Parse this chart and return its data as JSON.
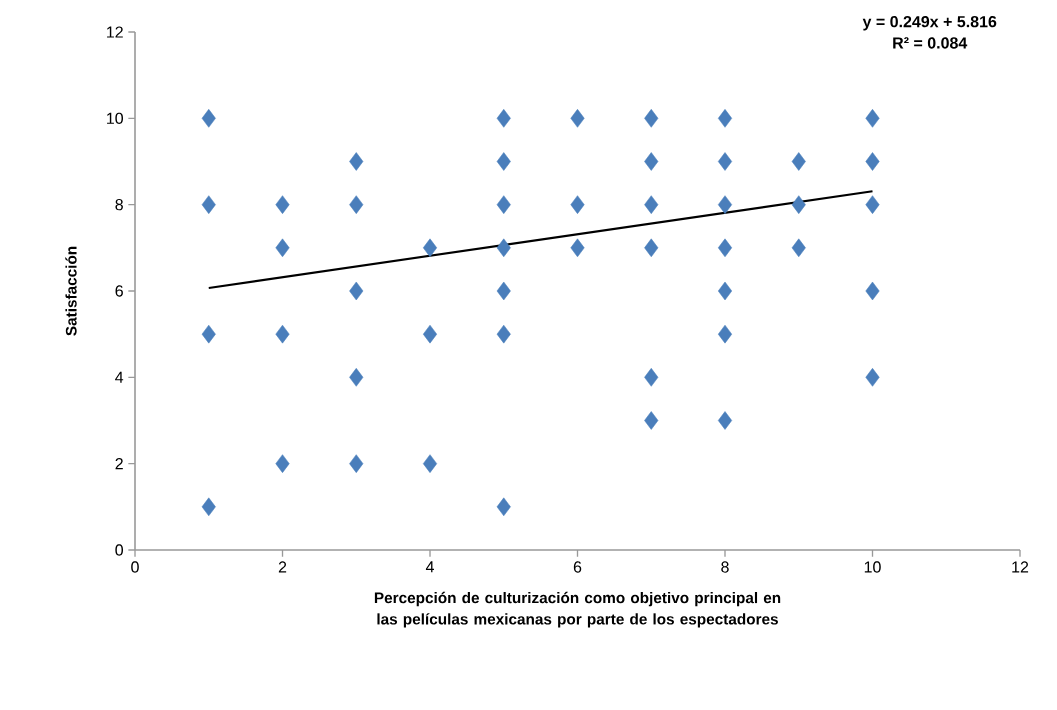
{
  "chart_data": {
    "type": "scatter",
    "xlabel": "Percepción de culturización como objetivo principal en las películas mexicanas por parte de los espectadores",
    "ylabel": "Satisfacción",
    "annotations": [
      "y = 0.249x + 5.816",
      "R² = 0.084"
    ],
    "xlim": [
      0,
      12
    ],
    "xticks": [
      0,
      2,
      4,
      6,
      8,
      10,
      12
    ],
    "ylim": [
      0,
      12
    ],
    "yticks": [
      0,
      2,
      4,
      6,
      8,
      10,
      12
    ],
    "marker": "diamond",
    "series": [
      {
        "color": "#4a7ebb",
        "x": [
          1,
          1,
          1,
          1,
          2,
          2,
          2,
          2,
          3,
          3,
          3,
          3,
          3,
          4,
          4,
          4,
          5,
          5,
          5,
          5,
          5,
          5,
          5,
          6,
          6,
          6,
          7,
          7,
          7,
          7,
          7,
          7,
          8,
          8,
          8,
          8,
          8,
          8,
          8,
          9,
          9,
          9,
          10,
          10,
          10,
          10,
          10
        ],
        "values": [
          10,
          8,
          5,
          1,
          8,
          7,
          5,
          2,
          9,
          8,
          6,
          4,
          2,
          7,
          5,
          2,
          10,
          9,
          8,
          7,
          6,
          5,
          1,
          10,
          8,
          7,
          10,
          9,
          8,
          7,
          4,
          3,
          10,
          9,
          8,
          7,
          6,
          5,
          3,
          9,
          8,
          7,
          10,
          9,
          8,
          6,
          4
        ]
      },
      {
        "type": "line",
        "color": "#000000",
        "marker": "none",
        "x": [
          1,
          10
        ],
        "values": [
          6.07,
          8.31
        ]
      }
    ]
  }
}
